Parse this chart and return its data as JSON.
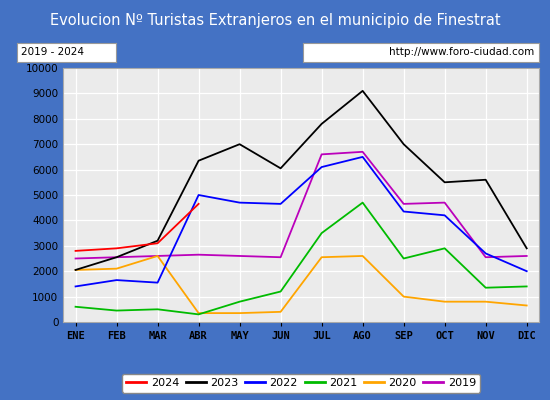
{
  "title": "Evolucion Nº Turistas Extranjeros en el municipio de Finestrat",
  "subtitle_left": "2019 - 2024",
  "subtitle_right": "http://www.foro-ciudad.com",
  "months": [
    "ENE",
    "FEB",
    "MAR",
    "ABR",
    "MAY",
    "JUN",
    "JUL",
    "AGO",
    "SEP",
    "OCT",
    "NOV",
    "DIC"
  ],
  "series": {
    "2024": [
      2800,
      2900,
      3100,
      4650,
      null,
      null,
      null,
      null,
      null,
      null,
      null,
      null
    ],
    "2023": [
      2050,
      2550,
      3200,
      6350,
      7000,
      6050,
      7800,
      9100,
      7000,
      5500,
      5600,
      2900
    ],
    "2022": [
      1400,
      1650,
      1550,
      5000,
      4700,
      4650,
      6100,
      6500,
      4350,
      4200,
      2700,
      2000
    ],
    "2021": [
      600,
      450,
      500,
      300,
      800,
      1200,
      3500,
      4700,
      2500,
      2900,
      1350,
      1400
    ],
    "2020": [
      2050,
      2100,
      2600,
      350,
      350,
      400,
      2550,
      2600,
      1000,
      800,
      800,
      650
    ],
    "2019": [
      2500,
      2550,
      2600,
      2650,
      2600,
      2550,
      6600,
      6700,
      4650,
      4700,
      2550,
      2600
    ]
  },
  "colors": {
    "2024": "#ff0000",
    "2023": "#000000",
    "2022": "#0000ff",
    "2021": "#00bb00",
    "2020": "#ffa500",
    "2019": "#bb00bb"
  },
  "ylim": [
    0,
    10000
  ],
  "yticks": [
    0,
    1000,
    2000,
    3000,
    4000,
    5000,
    6000,
    7000,
    8000,
    9000,
    10000
  ],
  "title_bg_color": "#4472c4",
  "title_text_color": "#ffffff",
  "plot_bg_color": "#ebebeb",
  "outer_bg_color": "#4472c4",
  "inner_bg_color": "#ffffff",
  "grid_color": "#ffffff",
  "legend_border": "#888888"
}
